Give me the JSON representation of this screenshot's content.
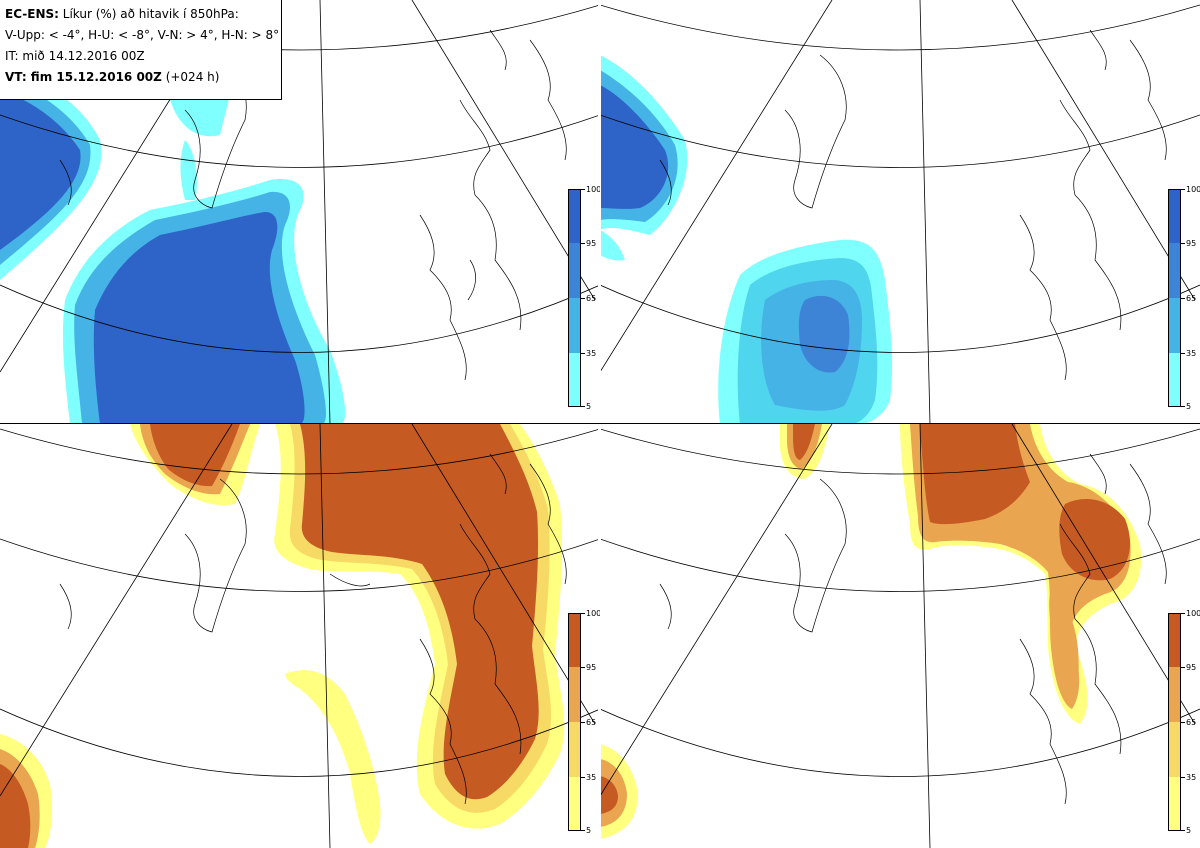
{
  "header": {
    "line1_bold": "EC-ENS:",
    "line1_rest": " Líkur (%) að hitavik í 850hPa:",
    "line2": "V-Upp: < -4°, H-U: < -8°, V-N: > 4°, H-N: > 8°",
    "line3": "IT: mið 14.12.2016 00Z",
    "line4_bold": "VT: fim 15.12.2016 00Z",
    "line4_rest": " (+024 h)"
  },
  "colorbar_labels": [
    "100",
    "95",
    "65",
    "35",
    "5"
  ],
  "colors": {
    "blue_ramp": [
      "#80ffff",
      "#4fd6ee",
      "#45b3e6",
      "#3e84d6",
      "#2e63c8"
    ],
    "orange_ramp": [
      "#ffff80",
      "#f7d966",
      "#e9a54f",
      "#d77a38",
      "#c55a22"
    ],
    "coast": "#000000",
    "grid": "#000000"
  },
  "panels": [
    {
      "id": "V-Upp",
      "ramp": "blue"
    },
    {
      "id": "H-U",
      "ramp": "blue"
    },
    {
      "id": "V-N",
      "ramp": "orange"
    },
    {
      "id": "H-N",
      "ramp": "orange"
    }
  ]
}
